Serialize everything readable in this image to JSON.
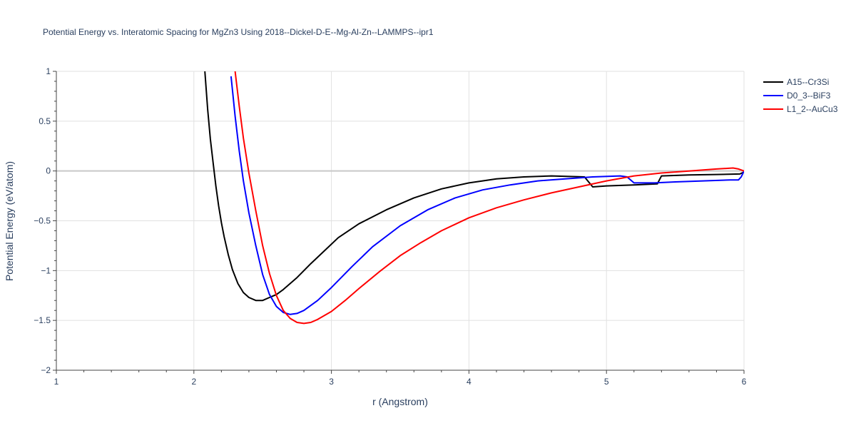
{
  "chart_data": {
    "type": "line",
    "title": "Potential Energy vs. Interatomic Spacing for MgZn3 Using 2018--Dickel-D-E--Mg-Al-Zn--LAMMPS--ipr1",
    "xlabel": "r (Angstrom)",
    "ylabel": "Potential Energy (eV/atom)",
    "xlim": [
      1,
      6
    ],
    "ylim": [
      -2,
      1
    ],
    "xticks": [
      1,
      2,
      3,
      4,
      5,
      6
    ],
    "xtick_labels": [
      "1",
      "2",
      "3",
      "4",
      "5",
      "6"
    ],
    "yticks": [
      -2,
      -1.5,
      -1,
      -0.5,
      0,
      0.5,
      1
    ],
    "ytick_labels": [
      "−2",
      "−1.5",
      "−1",
      "−0.5",
      "0",
      "0.5",
      "1"
    ],
    "grid": true,
    "legend_position": "top-right",
    "series": [
      {
        "name": "A15--Cr3Si",
        "color": "#000000",
        "x": [
          2.08,
          2.1,
          2.12,
          2.14,
          2.16,
          2.18,
          2.2,
          2.22,
          2.25,
          2.28,
          2.32,
          2.36,
          2.4,
          2.45,
          2.5,
          2.55,
          2.6,
          2.65,
          2.75,
          2.85,
          2.95,
          3.05,
          3.2,
          3.4,
          3.6,
          3.8,
          4.0,
          4.2,
          4.4,
          4.6,
          4.84,
          4.9,
          5.0,
          5.2,
          5.37,
          5.4,
          5.6,
          5.8,
          5.97,
          6.0
        ],
        "y": [
          1.0,
          0.62,
          0.32,
          0.08,
          -0.15,
          -0.35,
          -0.52,
          -0.66,
          -0.84,
          -0.99,
          -1.13,
          -1.22,
          -1.27,
          -1.3,
          -1.3,
          -1.27,
          -1.24,
          -1.19,
          -1.07,
          -0.93,
          -0.8,
          -0.67,
          -0.53,
          -0.39,
          -0.27,
          -0.18,
          -0.12,
          -0.08,
          -0.06,
          -0.05,
          -0.06,
          -0.16,
          -0.15,
          -0.14,
          -0.13,
          -0.05,
          -0.04,
          -0.035,
          -0.03,
          -0.01
        ]
      },
      {
        "name": "D0_3--BiF3",
        "color": "#0000ff",
        "x": [
          2.27,
          2.3,
          2.33,
          2.36,
          2.4,
          2.45,
          2.5,
          2.55,
          2.6,
          2.65,
          2.7,
          2.75,
          2.8,
          2.9,
          3.0,
          3.15,
          3.3,
          3.5,
          3.7,
          3.9,
          4.1,
          4.3,
          4.5,
          4.7,
          4.9,
          5.1,
          5.15,
          5.2,
          5.3,
          5.35,
          5.5,
          5.7,
          5.9,
          5.96,
          5.98,
          6.0
        ],
        "y": [
          0.95,
          0.55,
          0.2,
          -0.1,
          -0.42,
          -0.75,
          -1.04,
          -1.24,
          -1.36,
          -1.42,
          -1.44,
          -1.43,
          -1.4,
          -1.3,
          -1.17,
          -0.96,
          -0.76,
          -0.55,
          -0.39,
          -0.27,
          -0.19,
          -0.14,
          -0.1,
          -0.08,
          -0.06,
          -0.05,
          -0.06,
          -0.12,
          -0.12,
          -0.12,
          -0.11,
          -0.1,
          -0.09,
          -0.09,
          -0.06,
          0.0
        ]
      },
      {
        "name": "L1_2--AuCu3",
        "color": "#ff0000",
        "x": [
          2.3,
          2.33,
          2.36,
          2.4,
          2.45,
          2.5,
          2.55,
          2.6,
          2.65,
          2.7,
          2.75,
          2.8,
          2.85,
          2.9,
          3.0,
          3.1,
          3.2,
          3.35,
          3.5,
          3.65,
          3.8,
          4.0,
          4.2,
          4.4,
          4.6,
          4.8,
          5.0,
          5.2,
          5.4,
          5.6,
          5.8,
          5.92,
          5.96,
          6.0
        ],
        "y": [
          1.0,
          0.65,
          0.33,
          -0.02,
          -0.4,
          -0.75,
          -1.03,
          -1.25,
          -1.4,
          -1.48,
          -1.52,
          -1.53,
          -1.52,
          -1.49,
          -1.41,
          -1.3,
          -1.18,
          -1.01,
          -0.85,
          -0.72,
          -0.6,
          -0.47,
          -0.37,
          -0.29,
          -0.22,
          -0.16,
          -0.1,
          -0.05,
          -0.02,
          0.0,
          0.02,
          0.03,
          0.02,
          0.0
        ]
      }
    ]
  }
}
